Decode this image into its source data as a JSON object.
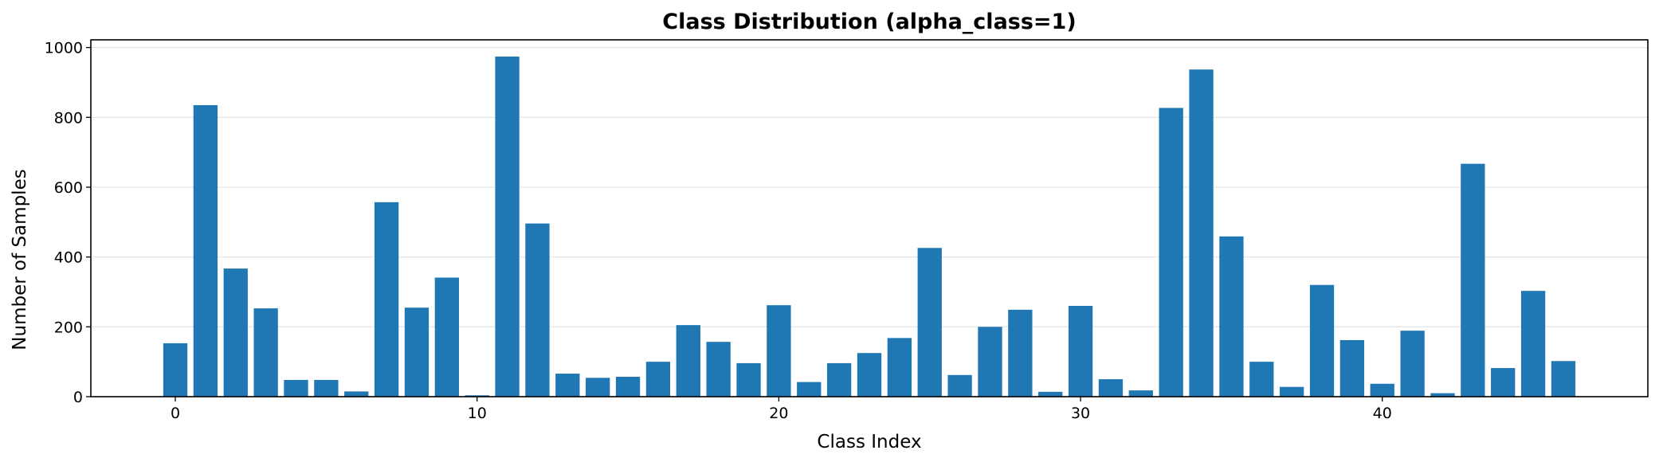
{
  "chart_data": {
    "type": "bar",
    "title": "Class Distribution (alpha_class=1)",
    "xlabel": "Class Index",
    "ylabel": "Number of Samples",
    "x": [
      0,
      1,
      2,
      3,
      4,
      5,
      6,
      7,
      8,
      9,
      10,
      11,
      12,
      13,
      14,
      15,
      16,
      17,
      18,
      19,
      20,
      21,
      22,
      23,
      24,
      25,
      26,
      27,
      28,
      29,
      30,
      31,
      32,
      33,
      34,
      35,
      36,
      37,
      38,
      39,
      40,
      41,
      42,
      43,
      44,
      45,
      46
    ],
    "values": [
      153,
      835,
      367,
      253,
      48,
      48,
      15,
      557,
      255,
      341,
      4,
      974,
      496,
      66,
      54,
      57,
      100,
      205,
      157,
      96,
      262,
      42,
      96,
      125,
      168,
      426,
      62,
      200,
      249,
      14,
      260,
      50,
      18,
      827,
      937,
      459,
      100,
      28,
      320,
      162,
      37,
      189,
      10,
      667,
      82,
      303,
      102
    ],
    "xlim": [
      -2.8,
      48.8
    ],
    "ylim": [
      0,
      1022
    ],
    "xticks": [
      0,
      10,
      20,
      30,
      40
    ],
    "yticks": [
      0,
      200,
      400,
      600,
      800,
      1000
    ],
    "grid": "y",
    "bar_color": "#1f77b4"
  }
}
